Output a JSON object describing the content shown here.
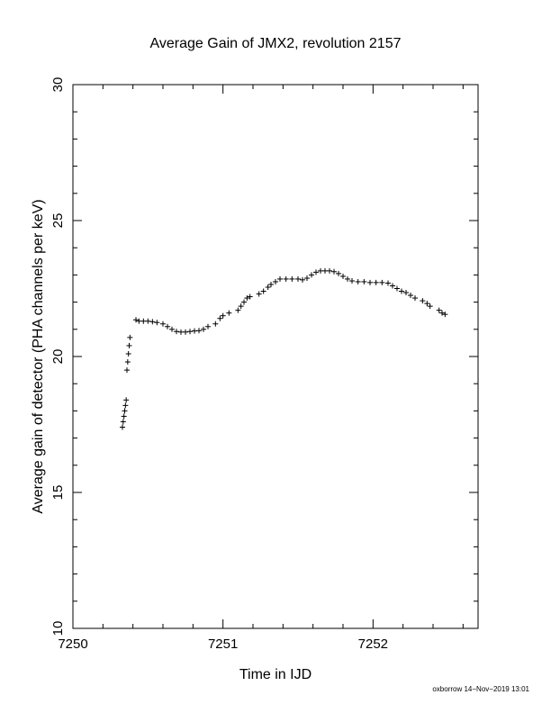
{
  "chart_data": {
    "type": "scatter",
    "title": "Average Gain of JMX2, revolution 2157",
    "xlabel": "Time in IJD",
    "ylabel": "Average gain of detector (PHA channels per keV)",
    "xlim": [
      7250,
      7252.7
    ],
    "ylim": [
      10,
      30
    ],
    "xticks": [
      7250,
      7251,
      7252
    ],
    "yticks": [
      10,
      15,
      20,
      25,
      30
    ],
    "marker": "plus",
    "grid": false,
    "footer": "oxborrow 14−Nov−2019 13:01",
    "series": [
      {
        "points": [
          [
            7250.33,
            17.4
          ],
          [
            7250.335,
            17.6
          ],
          [
            7250.34,
            17.8
          ],
          [
            7250.345,
            18.0
          ],
          [
            7250.35,
            18.2
          ],
          [
            7250.355,
            18.4
          ],
          [
            7250.36,
            19.5
          ],
          [
            7250.365,
            19.8
          ],
          [
            7250.37,
            20.1
          ],
          [
            7250.375,
            20.4
          ],
          [
            7250.38,
            20.7
          ],
          [
            7250.42,
            21.35
          ],
          [
            7250.44,
            21.3
          ],
          [
            7250.47,
            21.3
          ],
          [
            7250.5,
            21.3
          ],
          [
            7250.53,
            21.28
          ],
          [
            7250.56,
            21.25
          ],
          [
            7250.6,
            21.2
          ],
          [
            7250.63,
            21.1
          ],
          [
            7250.66,
            21.0
          ],
          [
            7250.69,
            20.92
          ],
          [
            7250.72,
            20.9
          ],
          [
            7250.75,
            20.9
          ],
          [
            7250.78,
            20.92
          ],
          [
            7250.81,
            20.94
          ],
          [
            7250.84,
            20.95
          ],
          [
            7250.87,
            21.0
          ],
          [
            7250.9,
            21.1
          ],
          [
            7250.95,
            21.2
          ],
          [
            7250.98,
            21.4
          ],
          [
            7251.0,
            21.5
          ],
          [
            7251.04,
            21.6
          ],
          [
            7251.1,
            21.7
          ],
          [
            7251.12,
            21.85
          ],
          [
            7251.14,
            22.0
          ],
          [
            7251.16,
            22.15
          ],
          [
            7251.18,
            22.2
          ],
          [
            7251.24,
            22.3
          ],
          [
            7251.27,
            22.4
          ],
          [
            7251.3,
            22.55
          ],
          [
            7251.32,
            22.65
          ],
          [
            7251.35,
            22.75
          ],
          [
            7251.38,
            22.85
          ],
          [
            7251.42,
            22.85
          ],
          [
            7251.46,
            22.85
          ],
          [
            7251.5,
            22.85
          ],
          [
            7251.53,
            22.82
          ],
          [
            7251.56,
            22.88
          ],
          [
            7251.59,
            23.0
          ],
          [
            7251.62,
            23.1
          ],
          [
            7251.65,
            23.15
          ],
          [
            7251.68,
            23.15
          ],
          [
            7251.71,
            23.15
          ],
          [
            7251.74,
            23.12
          ],
          [
            7251.77,
            23.05
          ],
          [
            7251.8,
            22.95
          ],
          [
            7251.83,
            22.85
          ],
          [
            7251.86,
            22.78
          ],
          [
            7251.9,
            22.75
          ],
          [
            7251.94,
            22.75
          ],
          [
            7251.98,
            22.72
          ],
          [
            7252.02,
            22.72
          ],
          [
            7252.06,
            22.72
          ],
          [
            7252.1,
            22.7
          ],
          [
            7252.13,
            22.6
          ],
          [
            7252.16,
            22.5
          ],
          [
            7252.19,
            22.4
          ],
          [
            7252.22,
            22.35
          ],
          [
            7252.25,
            22.25
          ],
          [
            7252.28,
            22.15
          ],
          [
            7252.33,
            22.05
          ],
          [
            7252.36,
            21.95
          ],
          [
            7252.38,
            21.85
          ],
          [
            7252.44,
            21.7
          ],
          [
            7252.46,
            21.6
          ],
          [
            7252.48,
            21.55
          ]
        ]
      }
    ]
  }
}
